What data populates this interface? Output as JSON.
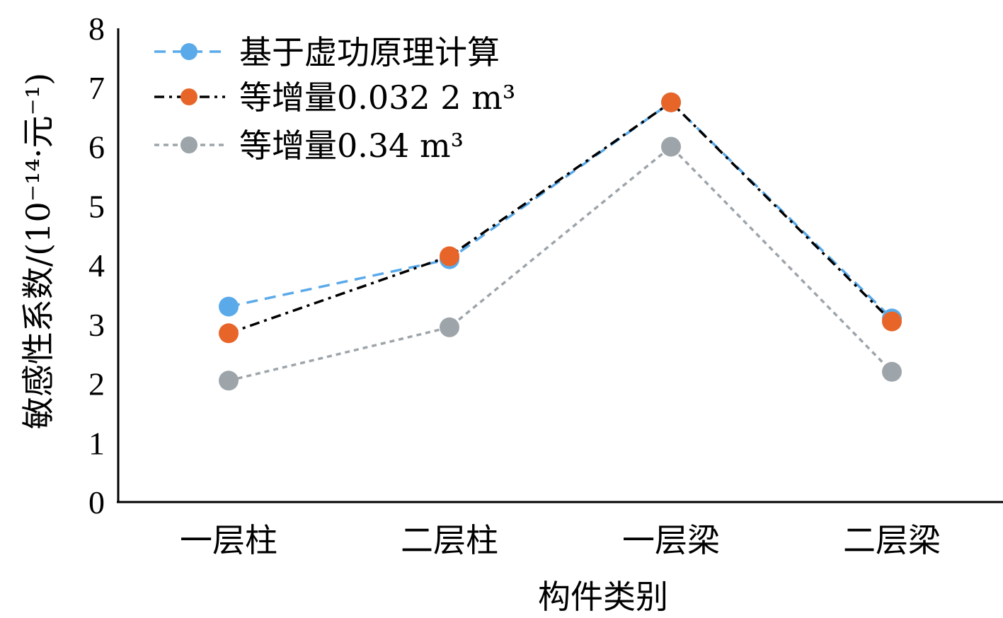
{
  "chart_data": {
    "type": "line",
    "title": "",
    "xlabel": "构件类别",
    "ylabel": "敏感性系数/(10⁻¹⁴·元⁻¹)",
    "categories": [
      "一层柱",
      "二层柱",
      "一层梁",
      "二层梁"
    ],
    "ylim": [
      0,
      8
    ],
    "yticks": [
      "0",
      "1",
      "2",
      "3",
      "4",
      "5",
      "6",
      "7",
      "8"
    ],
    "grid": false,
    "legend_position": "top-left",
    "series": [
      {
        "name": "基于虚功原理计算",
        "values": [
          3.3,
          4.1,
          6.75,
          3.1
        ],
        "color": "#5aaaea",
        "line_style": "dashed"
      },
      {
        "name": "等增量0.032 2 m³",
        "values": [
          2.85,
          4.15,
          6.75,
          3.05
        ],
        "color": "#e8652a",
        "line_color": "#000000",
        "line_style": "dash-dot"
      },
      {
        "name": "等增量0.34 m³",
        "values": [
          2.05,
          2.95,
          6.0,
          2.2
        ],
        "color": "#9ea5aa",
        "line_style": "dotted"
      }
    ]
  }
}
